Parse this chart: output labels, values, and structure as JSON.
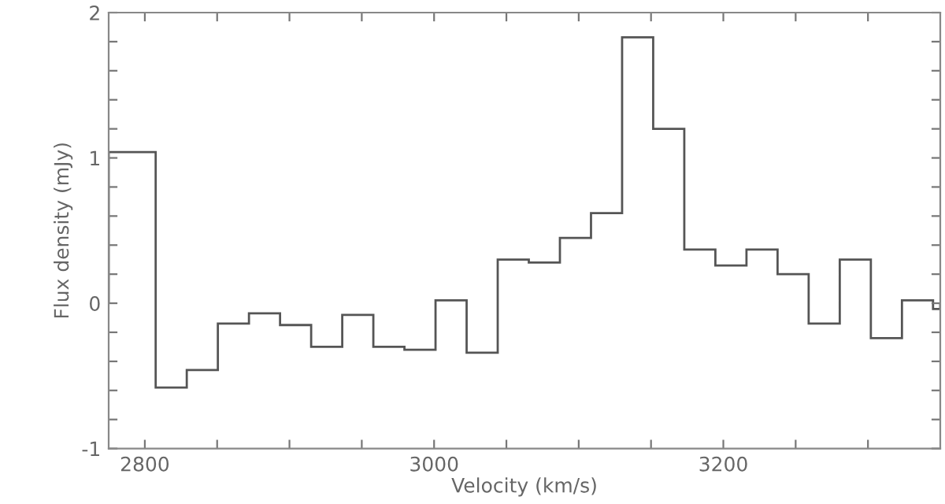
{
  "chart_data": {
    "type": "histogram",
    "xlabel": "Velocity (km/s)",
    "ylabel": "Flux density (mJy)",
    "bins": [
      2775,
      2807.5,
      2829,
      2850.5,
      2872,
      2893.5,
      2915,
      2936.5,
      2958,
      2979.5,
      3001,
      3022.5,
      3044,
      3065.5,
      3087,
      3108.5,
      3130,
      3151.5,
      3173,
      3194.5,
      3216,
      3237.5,
      3259,
      3280.5,
      3302,
      3323.5,
      3345,
      3350
    ],
    "values": [
      1.04,
      -0.58,
      -0.46,
      -0.14,
      -0.07,
      -0.15,
      -0.3,
      -0.08,
      -0.3,
      -0.32,
      0.02,
      -0.34,
      0.3,
      0.28,
      0.45,
      0.62,
      1.83,
      1.2,
      0.37,
      0.26,
      0.37,
      0.2,
      -0.14,
      0.3,
      -0.24,
      0.02,
      -0.04
    ],
    "color": "#555555",
    "xlim": [
      2775,
      3350
    ],
    "ylim": [
      -1,
      2
    ],
    "xticks": [
      2800,
      {
        "value": 2850,
        "label": null
      },
      {
        "value": 2900,
        "label": null
      },
      {
        "value": 2950,
        "label": null
      },
      3000,
      {
        "value": 3050,
        "label": null
      },
      {
        "value": 3100,
        "label": null
      },
      {
        "value": 3150,
        "label": null
      },
      3200,
      {
        "value": 3250,
        "label": null
      },
      {
        "value": 3300,
        "label": null
      }
    ],
    "yticks": [
      -1,
      {
        "value": -0.8,
        "label": null
      },
      {
        "value": -0.6,
        "label": null
      },
      {
        "value": -0.4,
        "label": null
      },
      {
        "value": -0.2,
        "label": null
      },
      0,
      {
        "value": 0.2,
        "label": null
      },
      {
        "value": 0.4,
        "label": null
      },
      {
        "value": 0.6,
        "label": null
      },
      {
        "value": 0.8,
        "label": null
      },
      1,
      {
        "value": 1.2,
        "label": null
      },
      {
        "value": 1.4,
        "label": null
      },
      {
        "value": 1.6,
        "label": null
      },
      {
        "value": 1.8,
        "label": null
      },
      2
    ]
  }
}
